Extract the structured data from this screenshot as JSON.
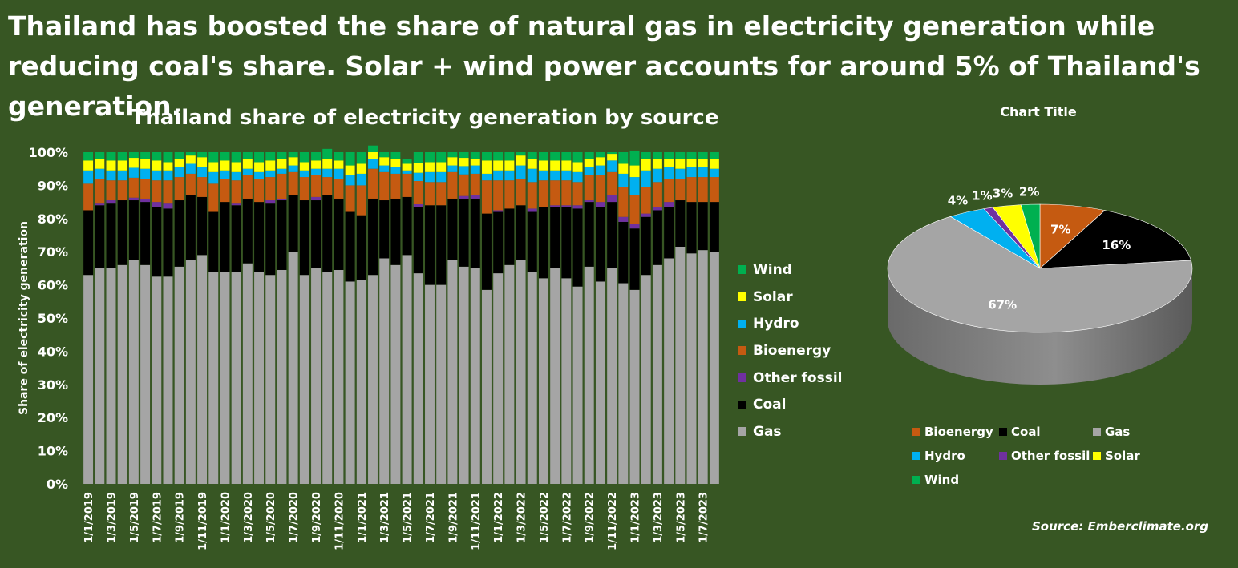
{
  "headline": "Thailand has boosted the share of natural gas in electricity generation while reducing coal's share. Solar + wind power accounts for around 5% of Thailand's generation.",
  "source": "Source: Emberclimate.org",
  "colors": {
    "background": "#375623",
    "Gas": "#A5A5A5",
    "Coal": "#000000",
    "Other fossil": "#7030A0",
    "Bioenergy": "#C55A11",
    "Hydro": "#00B0F0",
    "Solar": "#FFFF00",
    "Wind": "#00B050"
  },
  "chart_data": [
    {
      "type": "bar",
      "stacked": true,
      "title": "Thailand share of electricity generation by source",
      "ylabel": "Share of electricity generation",
      "ylim": [
        0,
        100
      ],
      "yticks": [
        "0%",
        "10%",
        "20%",
        "30%",
        "40%",
        "50%",
        "60%",
        "70%",
        "80%",
        "90%",
        "100%"
      ],
      "legend_position": "right",
      "legend": [
        "Wind",
        "Solar",
        "Hydro",
        "Bioenergy",
        "Other fossil",
        "Coal",
        "Gas"
      ],
      "categories": [
        "1/1/2019",
        "1/2/2019",
        "1/3/2019",
        "1/4/2019",
        "1/5/2019",
        "1/6/2019",
        "1/7/2019",
        "1/8/2019",
        "1/9/2019",
        "1/10/2019",
        "1/11/2019",
        "1/12/2019",
        "1/1/2020",
        "1/2/2020",
        "1/3/2020",
        "1/4/2020",
        "1/5/2020",
        "1/6/2020",
        "1/7/2020",
        "1/8/2020",
        "1/9/2020",
        "1/10/2020",
        "1/11/2020",
        "1/12/2020",
        "1/1/2021",
        "1/2/2021",
        "1/3/2021",
        "1/4/2021",
        "1/5/2021",
        "1/6/2021",
        "1/7/2021",
        "1/8/2021",
        "1/9/2021",
        "1/10/2021",
        "1/11/2021",
        "1/12/2021",
        "1/1/2022",
        "1/2/2022",
        "1/3/2022",
        "1/4/2022",
        "1/5/2022",
        "1/6/2022",
        "1/7/2022",
        "1/8/2022",
        "1/9/2022",
        "1/10/2022",
        "1/11/2022",
        "1/12/2022",
        "1/1/2023",
        "1/2/2023",
        "1/3/2023",
        "1/4/2023",
        "1/5/2023",
        "1/6/2023",
        "1/7/2023",
        "1/8/2023"
      ],
      "series": [
        {
          "name": "Gas",
          "values": [
            63,
            65,
            65,
            66,
            67.5,
            66,
            62.5,
            62.5,
            65.5,
            67.5,
            69,
            64,
            64,
            64,
            66.5,
            64,
            63,
            64.5,
            70,
            63,
            65,
            64,
            64.5,
            61,
            61.5,
            63,
            68,
            66,
            69,
            63.5,
            60,
            60,
            67.5,
            65.5,
            65,
            58.5,
            63.5,
            66,
            67.5,
            64,
            62,
            65,
            62,
            59.5,
            65.5,
            61,
            65,
            60.5,
            58.5,
            63,
            66,
            68,
            71.5,
            69.5,
            70.5,
            70
          ]
        },
        {
          "name": "Coal",
          "values": [
            19.5,
            19,
            19.5,
            19.5,
            18,
            19,
            21,
            20.5,
            20,
            19.5,
            17.5,
            18,
            21,
            20,
            19.5,
            21,
            21.5,
            21,
            17,
            22.5,
            20.5,
            23,
            21.5,
            21,
            19.5,
            23,
            17.5,
            20,
            17.5,
            20,
            24,
            24,
            18.5,
            20.5,
            21,
            23,
            18.5,
            17,
            16.5,
            18,
            21.5,
            18.5,
            21.5,
            23.5,
            19.5,
            22.5,
            20,
            18.5,
            18.5,
            17.5,
            16.5,
            15.5,
            14,
            15.5,
            14.5,
            15
          ]
        },
        {
          "name": "Other fossil",
          "values": [
            0,
            0.5,
            1,
            0,
            0.8,
            1,
            1.5,
            1.5,
            0,
            0,
            0,
            0,
            0,
            0.5,
            0,
            0,
            1,
            0.5,
            0,
            0,
            1,
            0,
            0,
            0,
            0,
            0,
            0,
            0,
            0,
            0.8,
            0,
            0,
            0,
            0.8,
            1,
            0,
            0.5,
            0,
            0,
            1,
            0,
            0.5,
            0.5,
            1,
            0.5,
            1.5,
            2,
            1.5,
            1.5,
            1,
            1,
            1.5,
            0,
            0,
            0,
            0
          ]
        },
        {
          "name": "Bioenergy",
          "values": [
            8,
            7.5,
            6,
            6,
            6,
            6,
            6.5,
            7,
            7,
            6.5,
            6,
            8.5,
            7,
            7,
            7,
            7,
            7,
            7.5,
            7,
            7,
            6.5,
            5.5,
            6,
            8,
            9,
            9,
            8.5,
            7.5,
            7,
            7,
            7,
            7,
            8,
            6.5,
            6.5,
            10,
            9,
            8.5,
            8,
            8,
            8,
            7.5,
            7.5,
            7,
            7.5,
            8,
            7,
            9,
            8.5,
            8,
            7.5,
            7,
            6.5,
            7.5,
            7.5,
            7.5
          ]
        },
        {
          "name": "Hydro",
          "values": [
            4,
            3,
            3,
            3,
            3,
            3,
            3,
            3,
            3,
            3,
            3,
            3.5,
            2.5,
            2.5,
            2,
            2,
            2,
            1.5,
            2,
            2,
            2,
            2.5,
            3,
            3,
            3.5,
            3,
            2,
            2,
            1,
            2.5,
            3,
            3,
            2,
            2.5,
            2.5,
            2,
            3,
            3,
            4,
            4,
            3,
            3,
            3,
            3,
            2.5,
            3,
            3.5,
            4,
            5.5,
            5,
            4,
            3.5,
            3,
            3,
            3,
            2.5
          ]
        },
        {
          "name": "Solar",
          "values": [
            3,
            3,
            3,
            3,
            3,
            3,
            3,
            2.5,
            2.5,
            2.5,
            3,
            3,
            3,
            3,
            3,
            3,
            3,
            3,
            2.5,
            2.5,
            2.5,
            3,
            2.5,
            3,
            3,
            2,
            2.5,
            2.5,
            2,
            3,
            3,
            3,
            2.5,
            2.5,
            2,
            4,
            3,
            3,
            3,
            3,
            3,
            3,
            3,
            3,
            2.5,
            2.5,
            2,
            3,
            3.5,
            3.5,
            3,
            2.5,
            3,
            2.5,
            2.5,
            3
          ]
        },
        {
          "name": "Wind",
          "values": [
            2.5,
            2,
            2.5,
            2.5,
            1.7,
            2,
            2.5,
            3,
            2,
            1,
            1.5,
            3,
            2.5,
            3,
            2,
            3,
            2.5,
            2,
            1.5,
            3,
            2.5,
            3,
            2.5,
            4,
            3.5,
            2,
            1.5,
            2,
            1.5,
            3.2,
            3,
            3,
            1.5,
            1.7,
            2,
            2.5,
            2.5,
            2.5,
            1,
            2,
            2.5,
            2.5,
            2.5,
            3,
            2,
            1.5,
            0.5,
            3.5,
            4.5,
            2,
            2,
            2,
            2,
            2,
            2,
            2
          ]
        }
      ],
      "shown_tick_labels": [
        "1/1/2019",
        "1/3/2019",
        "1/5/2019",
        "1/7/2019",
        "1/9/2019",
        "1/11/2019",
        "1/1/2020",
        "1/3/2020",
        "1/5/2020",
        "1/7/2020",
        "1/9/2020",
        "1/11/2020",
        "1/1/2021",
        "1/3/2021",
        "1/5/2021",
        "1/7/2021",
        "1/9/2021",
        "1/11/2021",
        "1/1/2022",
        "1/3/2022",
        "1/5/2022",
        "1/7/2022",
        "1/9/2022",
        "1/11/2022",
        "1/1/2023",
        "1/3/2023",
        "1/5/2023",
        "1/7/2023"
      ]
    },
    {
      "type": "pie",
      "title": "Chart Title",
      "style": "3d",
      "legend_position": "bottom",
      "slices": [
        {
          "name": "Bioenergy",
          "value": 7,
          "label": "7%"
        },
        {
          "name": "Coal",
          "value": 16,
          "label": "16%"
        },
        {
          "name": "Gas",
          "value": 67,
          "label": "67%"
        },
        {
          "name": "Hydro",
          "value": 4,
          "label": "4%"
        },
        {
          "name": "Other fossil",
          "value": 1,
          "label": "1%"
        },
        {
          "name": "Solar",
          "value": 3,
          "label": "3%"
        },
        {
          "name": "Wind",
          "value": 2,
          "label": "2%"
        }
      ],
      "legend": [
        "Bioenergy",
        "Coal",
        "Gas",
        "Hydro",
        "Other fossil",
        "Solar",
        "Wind"
      ]
    }
  ]
}
